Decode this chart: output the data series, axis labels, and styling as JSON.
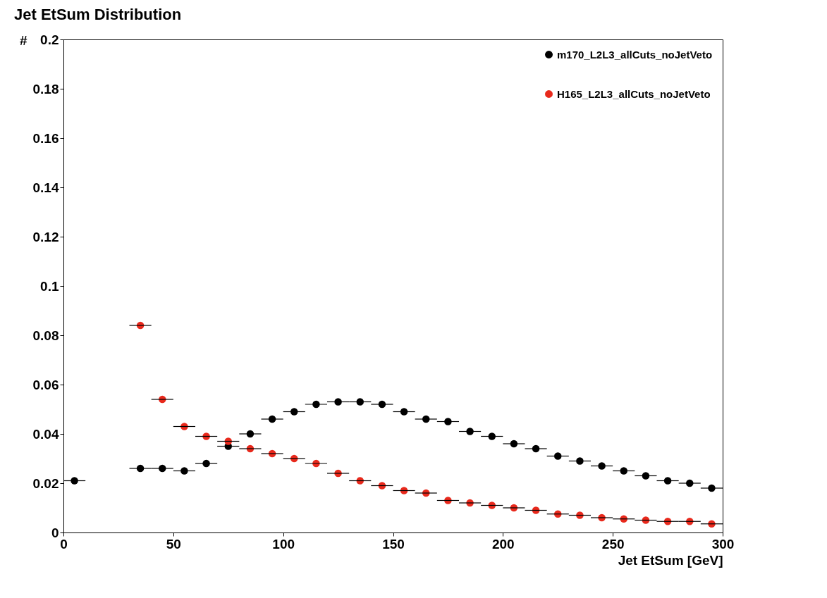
{
  "chart_data": {
    "type": "scatter",
    "title": "Jet EtSum Distribution",
    "xlabel": "Jet EtSum [GeV]",
    "ylabel": "#",
    "x": [
      5,
      35,
      45,
      55,
      65,
      75,
      85,
      95,
      105,
      115,
      125,
      135,
      145,
      155,
      165,
      175,
      185,
      195,
      205,
      215,
      225,
      235,
      245,
      255,
      265,
      275,
      285,
      295
    ],
    "series": [
      {
        "name": "m170_L2L3_allCuts_noJetVeto",
        "color": "#000000",
        "values": [
          0.021,
          0.026,
          0.026,
          0.025,
          0.028,
          0.035,
          0.04,
          0.046,
          0.049,
          0.052,
          0.053,
          0.053,
          0.052,
          0.049,
          0.046,
          0.045,
          0.041,
          0.039,
          0.036,
          0.034,
          0.031,
          0.029,
          0.027,
          0.025,
          0.023,
          0.021,
          0.02,
          0.018
        ],
        "xerrors": [
          5,
          5,
          5,
          5,
          5,
          5,
          5,
          5,
          5,
          5,
          5,
          5,
          5,
          5,
          5,
          5,
          5,
          5,
          5,
          5,
          5,
          5,
          5,
          5,
          5,
          5,
          5,
          5
        ]
      },
      {
        "name": "H165_L2L3_allCuts_noJetVeto",
        "color": "#e8291c",
        "values": [
          null,
          0.084,
          0.054,
          0.043,
          0.039,
          0.037,
          0.034,
          0.032,
          0.03,
          0.028,
          0.024,
          0.021,
          0.019,
          0.017,
          0.016,
          0.013,
          0.012,
          0.011,
          0.01,
          0.009,
          0.0075,
          0.007,
          0.006,
          0.0055,
          0.005,
          0.0045,
          0.0045,
          0.0035
        ],
        "xerrors": [
          null,
          5,
          5,
          5,
          5,
          5,
          5,
          5,
          5,
          5,
          5,
          5,
          5,
          5,
          5,
          5,
          5,
          5,
          5,
          5,
          5,
          5,
          5,
          5,
          5,
          5,
          5,
          5
        ]
      }
    ],
    "xlim": [
      0,
      300
    ],
    "xticks": [
      0,
      50,
      100,
      150,
      200,
      250,
      300
    ],
    "ylim": [
      0,
      0.2
    ],
    "yticks": [
      0,
      0.02,
      0.04,
      0.06,
      0.08,
      0.1,
      0.12,
      0.14,
      0.16,
      0.18,
      0.2
    ],
    "marker": "circle",
    "legend": "top right",
    "grid": false
  }
}
